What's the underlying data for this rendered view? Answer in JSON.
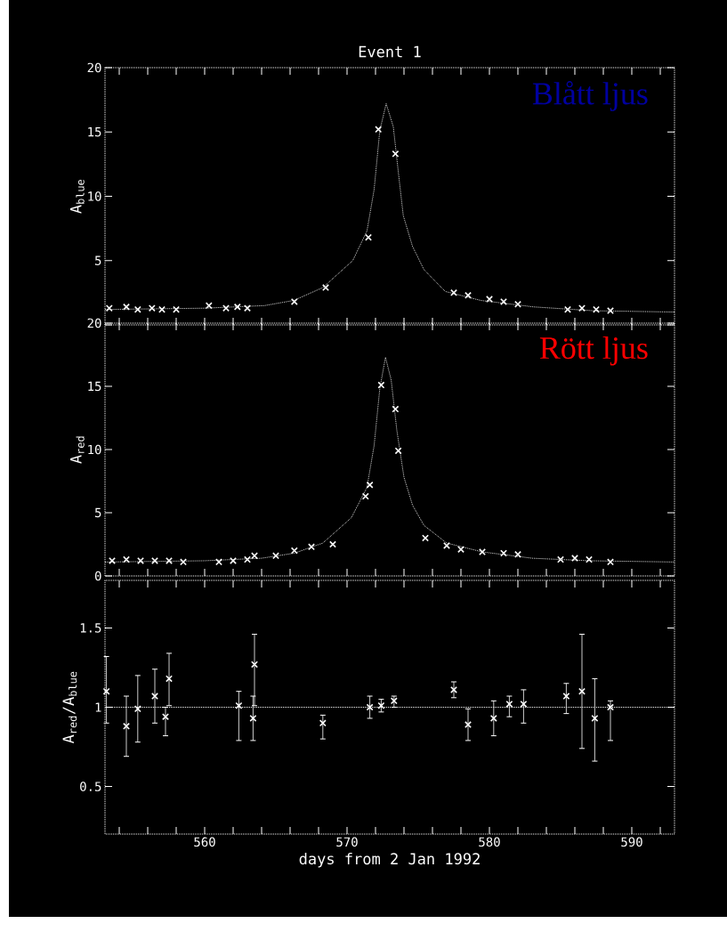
{
  "chart_data": [
    {
      "type": "line",
      "title": "Event 1",
      "ylabel": "A$_{blue}$",
      "annotations": [
        "Blått ljus"
      ],
      "xlim": [
        553,
        593
      ],
      "ylim": [
        0,
        20
      ],
      "xticks": [
        {
          "value": 554,
          "label": null
        },
        {
          "value": 556,
          "label": null
        },
        {
          "value": 558,
          "label": null
        },
        {
          "value": 560,
          "label": null
        },
        {
          "value": 562,
          "label": null
        },
        {
          "value": 564,
          "label": null
        },
        {
          "value": 566,
          "label": null
        },
        {
          "value": 568,
          "label": null
        },
        {
          "value": 570,
          "label": null
        },
        {
          "value": 572,
          "label": null
        },
        {
          "value": 574,
          "label": null
        },
        {
          "value": 576,
          "label": null
        },
        {
          "value": 578,
          "label": null
        },
        {
          "value": 580,
          "label": null
        },
        {
          "value": 582,
          "label": null
        },
        {
          "value": 584,
          "label": null
        },
        {
          "value": 586,
          "label": null
        },
        {
          "value": 588,
          "label": null
        },
        {
          "value": 590,
          "label": null
        },
        {
          "value": 592,
          "label": null
        }
      ],
      "yticks": [
        {
          "value": 0,
          "label": null
        },
        5,
        10,
        15,
        20
      ],
      "tick_labels": "y",
      "series": [
        {
          "type": "line",
          "color": "#ffffff",
          "line_style": "dotted",
          "marker": "none",
          "x": [
            553,
            560,
            564.2,
            566.25,
            568.3,
            570.4,
            571.4,
            571.9,
            572.3,
            572.75,
            573.25,
            573.6,
            573.95,
            574.6,
            575.4,
            576.9,
            579.4,
            583.1,
            587.3,
            593
          ],
          "values": [
            1.2,
            1.3,
            1.5,
            1.9,
            2.9,
            5,
            7.3,
            10.5,
            15.1,
            17.2,
            15.4,
            11.9,
            8.5,
            6.1,
            4.3,
            2.6,
            1.9,
            1.4,
            1.1,
            1.0
          ]
        },
        {
          "type": "scatter",
          "color": "#ffffff",
          "marker": "cross",
          "x": [
            553.3,
            554.5,
            555.3,
            556.3,
            557,
            558,
            560.3,
            561.5,
            562.3,
            563,
            566.3,
            568.5,
            571.5,
            572.2,
            573.4,
            577.5,
            578.5,
            580,
            581,
            582,
            585.5,
            586.5,
            587.5,
            588.5
          ],
          "values": [
            1.3,
            1.4,
            1.2,
            1.3,
            1.2,
            1.2,
            1.5,
            1.3,
            1.4,
            1.3,
            1.8,
            2.9,
            6.8,
            15.2,
            13.3,
            2.5,
            2.3,
            2.0,
            1.8,
            1.6,
            1.2,
            1.3,
            1.2,
            1.1
          ]
        }
      ]
    },
    {
      "type": "line",
      "ylabel": "A$_{red}$",
      "annotations": [
        "Rött ljus"
      ],
      "xlim": [
        553,
        593
      ],
      "ylim": [
        0,
        20
      ],
      "xticks": [
        {
          "value": 554,
          "label": null
        },
        {
          "value": 556,
          "label": null
        },
        {
          "value": 558,
          "label": null
        },
        {
          "value": 560,
          "label": null
        },
        {
          "value": 562,
          "label": null
        },
        {
          "value": 564,
          "label": null
        },
        {
          "value": 566,
          "label": null
        },
        {
          "value": 568,
          "label": null
        },
        {
          "value": 570,
          "label": null
        },
        {
          "value": 572,
          "label": null
        },
        {
          "value": 574,
          "label": null
        },
        {
          "value": 576,
          "label": null
        },
        {
          "value": 578,
          "label": null
        },
        {
          "value": 580,
          "label": null
        },
        {
          "value": 582,
          "label": null
        },
        {
          "value": 584,
          "label": null
        },
        {
          "value": 586,
          "label": null
        },
        {
          "value": 588,
          "label": null
        },
        {
          "value": 590,
          "label": null
        },
        {
          "value": 592,
          "label": null
        }
      ],
      "yticks": [
        0,
        5,
        10,
        15,
        20
      ],
      "tick_labels": "y",
      "series": [
        {
          "type": "line",
          "color": "#ffffff",
          "line_style": "dotted",
          "marker": "none",
          "x": [
            553,
            560,
            564,
            566.3,
            568.3,
            570.3,
            571.4,
            571.9,
            572.3,
            572.7,
            573.1,
            573.5,
            574,
            574.6,
            575.4,
            577,
            579.5,
            583,
            587,
            593
          ],
          "values": [
            1.1,
            1.2,
            1.4,
            1.8,
            2.6,
            4.6,
            7.0,
            10.3,
            14.8,
            17.3,
            15.5,
            11.5,
            7.8,
            5.6,
            4.0,
            2.6,
            1.9,
            1.4,
            1.2,
            1.1
          ]
        },
        {
          "type": "scatter",
          "color": "#ffffff",
          "marker": "cross",
          "x": [
            553.5,
            554.5,
            555.5,
            556.5,
            557.5,
            558.5,
            561,
            562,
            563,
            563.5,
            565,
            566.3,
            567.5,
            569,
            571.3,
            571.6,
            572.4,
            573.4,
            573.6,
            575.5,
            577,
            578,
            579.5,
            581,
            582,
            585,
            586,
            587,
            588.5
          ],
          "values": [
            1.2,
            1.3,
            1.2,
            1.2,
            1.2,
            1.1,
            1.1,
            1.2,
            1.3,
            1.6,
            1.6,
            2.0,
            2.3,
            2.5,
            6.3,
            7.2,
            15.1,
            13.2,
            9.9,
            3.0,
            2.4,
            2.1,
            1.9,
            1.8,
            1.7,
            1.3,
            1.4,
            1.3,
            1.1
          ]
        }
      ]
    },
    {
      "type": "scatter",
      "xlabel": "days from 2 Jan 1992",
      "ylabel": "A$_{red}$/A$_{blue}$",
      "xlim": [
        553,
        593
      ],
      "ylim": [
        0.2,
        1.8
      ],
      "xticks": [
        {
          "value": 554,
          "label": null
        },
        {
          "value": 556,
          "label": null
        },
        {
          "value": 558,
          "label": null
        },
        560,
        {
          "value": 562,
          "label": null
        },
        {
          "value": 564,
          "label": null
        },
        {
          "value": 566,
          "label": null
        },
        {
          "value": 568,
          "label": null
        },
        570,
        {
          "value": 572,
          "label": null
        },
        {
          "value": 574,
          "label": null
        },
        {
          "value": 576,
          "label": null
        },
        {
          "value": 578,
          "label": null
        },
        580,
        {
          "value": 582,
          "label": null
        },
        {
          "value": 584,
          "label": null
        },
        {
          "value": 586,
          "label": null
        },
        {
          "value": 588,
          "label": null
        },
        590,
        {
          "value": 592,
          "label": null
        }
      ],
      "yticks": [
        0.5,
        1,
        1.5
      ],
      "color": "#ffffff",
      "marker": "cross",
      "ref_lines": [
        {
          "axis": "y",
          "value": 1,
          "color": "#ffffff",
          "line_style": "dotted"
        }
      ],
      "x": [
        553.1,
        554.5,
        555.3,
        556.5,
        557.25,
        557.5,
        562.4,
        563.4,
        563.5,
        568.3,
        571.6,
        572.4,
        573.3,
        577.5,
        578.5,
        580.3,
        581.4,
        582.4,
        585.4,
        586.5,
        587.4,
        588.5
      ],
      "values": [
        1.1,
        0.88,
        0.99,
        1.07,
        0.94,
        1.18,
        1.01,
        0.93,
        1.27,
        0.9,
        1.0,
        1.01,
        1.04,
        1.11,
        0.89,
        0.93,
        1.02,
        1.02,
        1.07,
        1.1,
        0.93,
        1.0
      ],
      "errors": [
        [
          0.9,
          1.32
        ],
        [
          0.69,
          1.07
        ],
        [
          0.78,
          1.2
        ],
        [
          0.9,
          1.24
        ],
        [
          0.82,
          1.0
        ],
        [
          1.01,
          1.34
        ],
        [
          0.79,
          1.1
        ],
        [
          0.79,
          1.07
        ],
        [
          1.01,
          1.46
        ],
        [
          0.8,
          0.95
        ],
        [
          0.93,
          1.07
        ],
        [
          0.97,
          1.05
        ],
        [
          1.0,
          1.07
        ],
        [
          1.06,
          1.16
        ],
        [
          0.79,
          0.99
        ],
        [
          0.82,
          1.04
        ],
        [
          0.94,
          1.07
        ],
        [
          0.9,
          1.11
        ],
        [
          0.96,
          1.15
        ],
        [
          0.74,
          1.46
        ],
        [
          0.66,
          1.18
        ],
        [
          0.79,
          1.04
        ]
      ]
    }
  ]
}
